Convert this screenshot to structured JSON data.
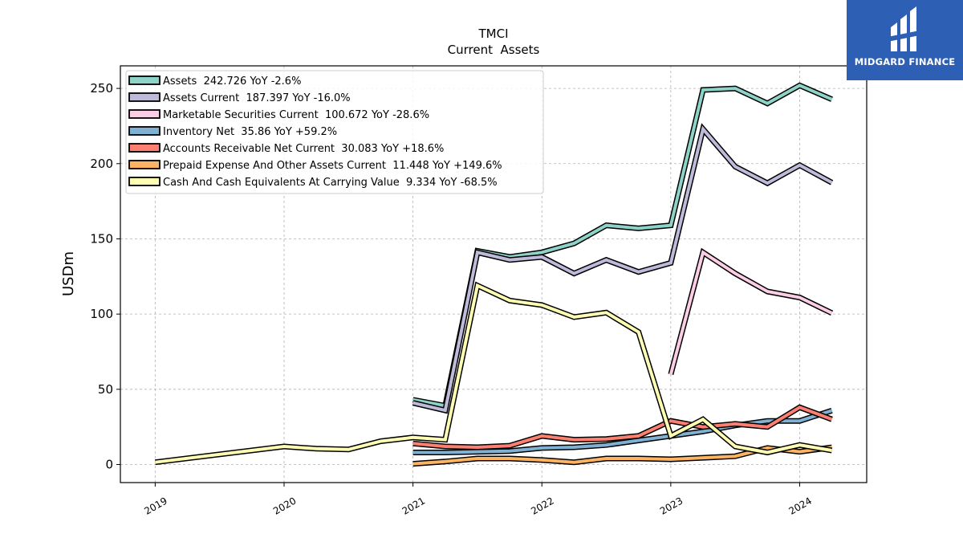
{
  "chart_data": {
    "type": "line",
    "title": "TMCI",
    "subtitle": "Current  Assets",
    "ylabel": "USDm",
    "xlabel": "",
    "xlim": [
      2018.73,
      2024.52
    ],
    "ylim": [
      -12,
      265
    ],
    "x_ticks": [
      {
        "value": 2019,
        "label": "2019"
      },
      {
        "value": 2020,
        "label": "2020"
      },
      {
        "value": 2021,
        "label": "2021"
      },
      {
        "value": 2022,
        "label": "2022"
      },
      {
        "value": 2023,
        "label": "2023"
      },
      {
        "value": 2024,
        "label": "2024"
      }
    ],
    "y_ticks": [
      0,
      50,
      100,
      150,
      200,
      250
    ],
    "grid": true,
    "legend_position": "top-left",
    "series": [
      {
        "name": "Assets  242.726 YoY -2.6%",
        "color": "#8dd3c7",
        "points": [
          [
            2021.0,
            43
          ],
          [
            2021.25,
            39
          ],
          [
            2021.5,
            142
          ],
          [
            2021.75,
            138
          ],
          [
            2022.0,
            141
          ],
          [
            2022.25,
            147
          ],
          [
            2022.5,
            159
          ],
          [
            2022.75,
            157
          ],
          [
            2023.0,
            159
          ],
          [
            2023.25,
            249
          ],
          [
            2023.5,
            250
          ],
          [
            2023.75,
            240
          ],
          [
            2024.0,
            252
          ],
          [
            2024.25,
            242.726
          ]
        ]
      },
      {
        "name": "Assets Current  187.397 YoY -16.0%",
        "color": "#bebada",
        "points": [
          [
            2021.0,
            41
          ],
          [
            2021.25,
            36
          ],
          [
            2021.5,
            141
          ],
          [
            2021.75,
            136
          ],
          [
            2022.0,
            138
          ],
          [
            2022.25,
            127
          ],
          [
            2022.5,
            136
          ],
          [
            2022.75,
            128
          ],
          [
            2023.0,
            134
          ],
          [
            2023.25,
            223
          ],
          [
            2023.5,
            198
          ],
          [
            2023.75,
            187
          ],
          [
            2024.0,
            199
          ],
          [
            2024.25,
            187.397
          ]
        ]
      },
      {
        "name": "Marketable Securities Current  100.672 YoY -28.6%",
        "color": "#fccde5",
        "points": [
          [
            2023.0,
            60
          ],
          [
            2023.25,
            141
          ],
          [
            2023.5,
            127
          ],
          [
            2023.75,
            115
          ],
          [
            2024.0,
            111
          ],
          [
            2024.25,
            100.672
          ]
        ]
      },
      {
        "name": "Inventory Net  35.86 YoY +59.2%",
        "color": "#80b1d3",
        "points": [
          [
            2021.0,
            8
          ],
          [
            2021.25,
            8
          ],
          [
            2021.5,
            8.5
          ],
          [
            2021.75,
            9
          ],
          [
            2022.0,
            11
          ],
          [
            2022.25,
            11.5
          ],
          [
            2022.5,
            13
          ],
          [
            2022.75,
            16
          ],
          [
            2023.0,
            19
          ],
          [
            2023.25,
            22
          ],
          [
            2023.5,
            26
          ],
          [
            2023.75,
            29
          ],
          [
            2024.0,
            29
          ],
          [
            2024.25,
            35.86
          ]
        ]
      },
      {
        "name": "Accounts Receivable Net Current  30.083 YoY +18.6%",
        "color": "#fb8072",
        "points": [
          [
            2021.0,
            14
          ],
          [
            2021.25,
            12
          ],
          [
            2021.5,
            11.5
          ],
          [
            2021.75,
            12.5
          ],
          [
            2022.0,
            19
          ],
          [
            2022.25,
            16.5
          ],
          [
            2022.5,
            17
          ],
          [
            2022.75,
            19
          ],
          [
            2023.0,
            29
          ],
          [
            2023.25,
            25
          ],
          [
            2023.5,
            27
          ],
          [
            2023.75,
            25
          ],
          [
            2024.0,
            38
          ],
          [
            2024.25,
            30.083
          ]
        ]
      },
      {
        "name": "Prepaid Expense And Other Assets Current  11.448 YoY +149.6%",
        "color": "#fdb462",
        "points": [
          [
            2021.0,
            0.5
          ],
          [
            2021.25,
            2
          ],
          [
            2021.5,
            4
          ],
          [
            2021.75,
            4
          ],
          [
            2022.0,
            3
          ],
          [
            2022.25,
            1.5
          ],
          [
            2022.5,
            4
          ],
          [
            2022.75,
            4
          ],
          [
            2023.0,
            3.5
          ],
          [
            2023.25,
            4.5
          ],
          [
            2023.5,
            5.5
          ],
          [
            2023.75,
            11
          ],
          [
            2024.0,
            8.5
          ],
          [
            2024.25,
            11.448
          ]
        ]
      },
      {
        "name": "Cash And Cash Equivalents At Carrying Value  9.334 YoY -68.5%",
        "color": "#ffffb3",
        "points": [
          [
            2019.0,
            1.5
          ],
          [
            2020.0,
            12
          ],
          [
            2020.25,
            10.5
          ],
          [
            2020.5,
            10
          ],
          [
            2020.75,
            15.5
          ],
          [
            2021.0,
            18
          ],
          [
            2021.25,
            16.5
          ],
          [
            2021.5,
            119
          ],
          [
            2021.75,
            109
          ],
          [
            2022.0,
            106
          ],
          [
            2022.25,
            98
          ],
          [
            2022.5,
            101
          ],
          [
            2022.75,
            88
          ],
          [
            2023.0,
            19
          ],
          [
            2023.25,
            30
          ],
          [
            2023.5,
            12
          ],
          [
            2023.75,
            8
          ],
          [
            2024.0,
            13
          ],
          [
            2024.25,
            9.334
          ]
        ]
      }
    ]
  },
  "branding": {
    "logo_text": "MIDGARD FINANCE",
    "logo_icon": "midgard-logo-icon",
    "logo_color": "#2d5fb4"
  }
}
